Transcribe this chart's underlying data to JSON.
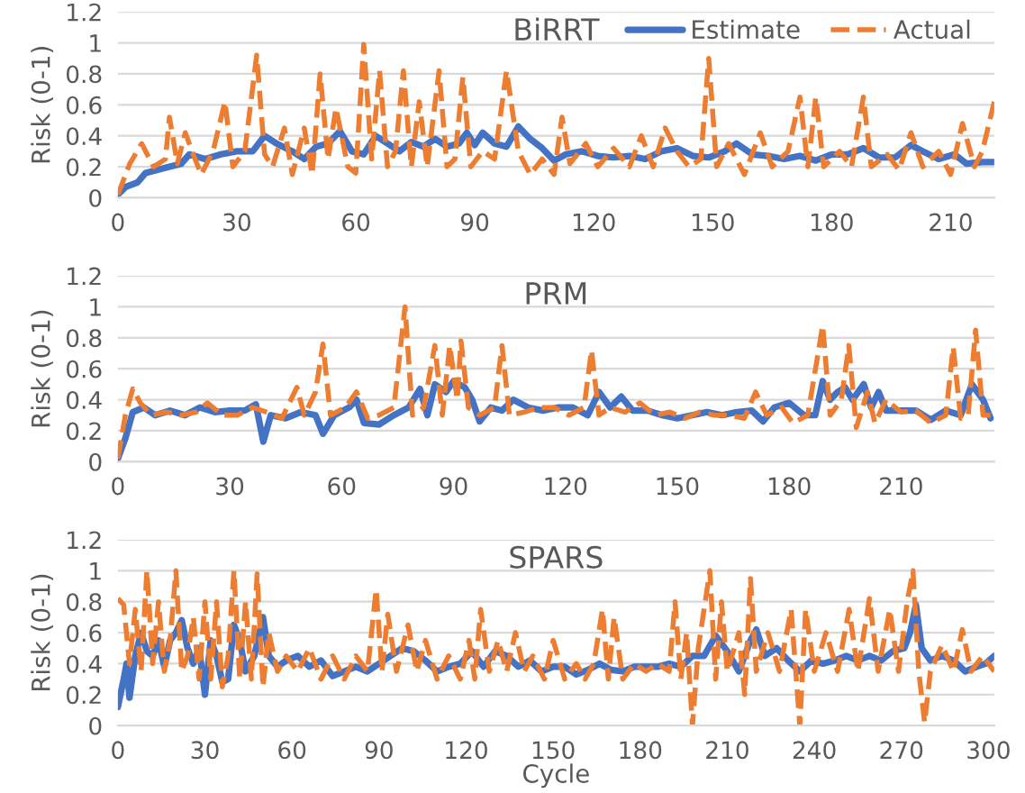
{
  "chart_data": [
    {
      "type": "line",
      "title": "BiRRT",
      "ylabel": "Risk (0-1)",
      "xlim": [
        0,
        221
      ],
      "xticks": [
        0,
        30,
        60,
        90,
        120,
        150,
        180,
        210
      ],
      "ylim": [
        0,
        1.2
      ],
      "yticks": [
        0,
        0.2,
        0.4,
        0.6,
        0.8,
        1,
        1.2
      ],
      "grid": "y",
      "legend": "top right",
      "series": [
        {
          "name": "Estimate",
          "color": "#4472c4",
          "line_style": "solid",
          "x": [
            0,
            2,
            5,
            7,
            10,
            13,
            16,
            18,
            22,
            26,
            30,
            34,
            37,
            40,
            44,
            47,
            50,
            53,
            56,
            59,
            62,
            65,
            68,
            71,
            74,
            77,
            80,
            83,
            86,
            88,
            90,
            92,
            95,
            98,
            101,
            104,
            107,
            110,
            113,
            117,
            121,
            125,
            129,
            133,
            137,
            141,
            145,
            149,
            153,
            156,
            160,
            164,
            168,
            172,
            176,
            180,
            184,
            188,
            192,
            196,
            200,
            203,
            207,
            211,
            214,
            218,
            221
          ],
          "values": [
            0.02,
            0.07,
            0.1,
            0.16,
            0.18,
            0.2,
            0.22,
            0.28,
            0.25,
            0.28,
            0.3,
            0.3,
            0.4,
            0.35,
            0.3,
            0.25,
            0.33,
            0.35,
            0.43,
            0.3,
            0.28,
            0.4,
            0.35,
            0.3,
            0.36,
            0.33,
            0.38,
            0.33,
            0.35,
            0.42,
            0.34,
            0.42,
            0.35,
            0.33,
            0.46,
            0.38,
            0.32,
            0.24,
            0.28,
            0.3,
            0.27,
            0.26,
            0.27,
            0.25,
            0.3,
            0.32,
            0.27,
            0.26,
            0.3,
            0.35,
            0.28,
            0.27,
            0.25,
            0.27,
            0.24,
            0.28,
            0.28,
            0.32,
            0.26,
            0.26,
            0.34,
            0.3,
            0.25,
            0.28,
            0.22,
            0.23,
            0.23
          ]
        },
        {
          "name": "Actual",
          "color": "#ed7d31",
          "line_style": "dashed",
          "x": [
            0,
            3,
            6,
            9,
            12,
            13,
            15,
            17,
            19,
            21,
            24,
            27,
            29,
            32,
            35,
            37,
            39,
            42,
            44,
            47,
            49,
            51,
            53,
            55,
            58,
            60,
            62,
            64,
            66,
            68,
            70,
            72,
            74,
            76,
            78,
            81,
            83,
            85,
            87,
            89,
            92,
            95,
            98,
            101,
            104,
            107,
            110,
            112,
            114,
            118,
            121,
            125,
            129,
            132,
            135,
            138,
            141,
            144,
            147,
            149,
            151,
            154,
            158,
            162,
            165,
            169,
            172,
            174,
            176,
            178,
            182,
            185,
            188,
            190,
            194,
            197,
            200,
            203,
            207,
            210,
            213,
            216,
            218,
            221
          ],
          "values": [
            0.02,
            0.22,
            0.35,
            0.2,
            0.25,
            0.52,
            0.22,
            0.42,
            0.28,
            0.15,
            0.3,
            0.62,
            0.2,
            0.3,
            0.92,
            0.28,
            0.2,
            0.45,
            0.15,
            0.45,
            0.15,
            0.8,
            0.25,
            0.58,
            0.2,
            0.16,
            0.99,
            0.25,
            0.82,
            0.2,
            0.3,
            0.82,
            0.2,
            0.62,
            0.2,
            0.82,
            0.2,
            0.25,
            0.78,
            0.2,
            0.3,
            0.25,
            0.82,
            0.3,
            0.15,
            0.25,
            0.15,
            0.52,
            0.22,
            0.35,
            0.2,
            0.32,
            0.2,
            0.4,
            0.2,
            0.45,
            0.3,
            0.2,
            0.25,
            0.9,
            0.2,
            0.35,
            0.15,
            0.42,
            0.2,
            0.3,
            0.65,
            0.2,
            0.65,
            0.2,
            0.3,
            0.2,
            0.65,
            0.2,
            0.28,
            0.18,
            0.42,
            0.2,
            0.3,
            0.15,
            0.48,
            0.2,
            0.3,
            0.62
          ]
        }
      ]
    },
    {
      "type": "line",
      "title": "PRM",
      "ylabel": "Risk (0-1)",
      "xlim": [
        0,
        235
      ],
      "xticks": [
        0,
        30,
        60,
        90,
        120,
        150,
        180,
        210
      ],
      "ylim": [
        0,
        1.2
      ],
      "yticks": [
        0,
        0.2,
        0.4,
        0.6,
        0.8,
        1,
        1.2
      ],
      "grid": "y",
      "series": [
        {
          "color": "#4472c4",
          "line_style": "solid",
          "x": [
            0,
            2,
            4,
            7,
            10,
            14,
            18,
            22,
            26,
            30,
            34,
            37,
            39,
            41,
            45,
            49,
            53,
            55,
            58,
            62,
            64,
            66,
            70,
            74,
            78,
            81,
            83,
            85,
            88,
            90,
            93,
            95,
            97,
            100,
            103,
            106,
            110,
            114,
            118,
            122,
            126,
            129,
            132,
            135,
            138,
            142,
            146,
            150,
            154,
            158,
            162,
            166,
            170,
            173,
            176,
            180,
            184,
            187,
            189,
            191,
            193,
            195,
            197,
            200,
            202,
            204,
            206,
            210,
            214,
            218,
            222,
            226,
            229,
            232,
            234
          ],
          "values": [
            0.02,
            0.15,
            0.32,
            0.35,
            0.3,
            0.33,
            0.3,
            0.35,
            0.32,
            0.33,
            0.33,
            0.37,
            0.13,
            0.3,
            0.28,
            0.32,
            0.3,
            0.18,
            0.3,
            0.35,
            0.4,
            0.25,
            0.24,
            0.3,
            0.35,
            0.47,
            0.3,
            0.5,
            0.45,
            0.52,
            0.48,
            0.4,
            0.26,
            0.35,
            0.33,
            0.4,
            0.35,
            0.33,
            0.35,
            0.35,
            0.3,
            0.45,
            0.35,
            0.42,
            0.33,
            0.33,
            0.3,
            0.28,
            0.3,
            0.32,
            0.3,
            0.32,
            0.33,
            0.26,
            0.35,
            0.38,
            0.3,
            0.3,
            0.52,
            0.4,
            0.45,
            0.48,
            0.4,
            0.5,
            0.35,
            0.45,
            0.33,
            0.33,
            0.33,
            0.27,
            0.33,
            0.3,
            0.5,
            0.4,
            0.28
          ]
        },
        {
          "color": "#ed7d31",
          "line_style": "dashed",
          "x": [
            0,
            2,
            4,
            6,
            9,
            13,
            17,
            21,
            24,
            28,
            32,
            36,
            40,
            44,
            48,
            50,
            53,
            55,
            57,
            61,
            64,
            67,
            70,
            74,
            77,
            79,
            82,
            85,
            87,
            89,
            91,
            92,
            94,
            97,
            101,
            103,
            105,
            109,
            113,
            117,
            121,
            125,
            127,
            129,
            132,
            136,
            140,
            144,
            148,
            152,
            156,
            160,
            164,
            168,
            171,
            174,
            178,
            181,
            185,
            189,
            191,
            194,
            196,
            198,
            201,
            203,
            206,
            210,
            214,
            218,
            222,
            224,
            226,
            228,
            230,
            232,
            234
          ],
          "values": [
            0.02,
            0.3,
            0.47,
            0.38,
            0.3,
            0.32,
            0.3,
            0.32,
            0.38,
            0.3,
            0.3,
            0.35,
            0.32,
            0.28,
            0.48,
            0.3,
            0.45,
            0.76,
            0.3,
            0.35,
            0.45,
            0.28,
            0.3,
            0.35,
            1.0,
            0.3,
            0.35,
            0.75,
            0.3,
            0.75,
            0.4,
            0.78,
            0.35,
            0.3,
            0.35,
            0.75,
            0.3,
            0.32,
            0.35,
            0.35,
            0.3,
            0.35,
            0.72,
            0.3,
            0.35,
            0.32,
            0.38,
            0.3,
            0.32,
            0.28,
            0.32,
            0.3,
            0.3,
            0.28,
            0.45,
            0.3,
            0.35,
            0.25,
            0.3,
            0.88,
            0.3,
            0.4,
            0.75,
            0.22,
            0.45,
            0.25,
            0.4,
            0.32,
            0.33,
            0.25,
            0.3,
            0.74,
            0.28,
            0.3,
            0.85,
            0.3,
            0.3
          ]
        }
      ]
    },
    {
      "type": "line",
      "title": "SPARS",
      "xlabel": "Cycle",
      "ylabel": "Risk (0-1)",
      "xlim": [
        0,
        302
      ],
      "xticks": [
        0,
        30,
        60,
        90,
        120,
        150,
        180,
        210,
        240,
        270,
        300
      ],
      "ylim": [
        0,
        1.2
      ],
      "yticks": [
        0,
        0.2,
        0.4,
        0.6,
        0.8,
        1,
        1.2
      ],
      "grid": "y",
      "series": [
        {
          "color": "#4472c4",
          "line_style": "solid",
          "x": [
            0,
            2,
            3,
            4,
            6,
            8,
            10,
            12,
            14,
            16,
            18,
            20,
            22,
            24,
            26,
            28,
            30,
            32,
            34,
            36,
            38,
            40,
            42,
            44,
            47,
            50,
            52,
            55,
            58,
            62,
            66,
            70,
            74,
            78,
            82,
            86,
            90,
            94,
            98,
            102,
            106,
            110,
            114,
            118,
            122,
            126,
            130,
            134,
            138,
            142,
            146,
            150,
            154,
            158,
            162,
            166,
            170,
            174,
            178,
            182,
            186,
            190,
            194,
            198,
            202,
            206,
            210,
            214,
            218,
            220,
            223,
            227,
            231,
            235,
            239,
            243,
            247,
            251,
            255,
            259,
            263,
            267,
            271,
            273,
            275,
            277,
            280,
            284,
            288,
            292,
            296,
            299,
            302
          ],
          "values": [
            0.12,
            0.3,
            0.4,
            0.18,
            0.45,
            0.6,
            0.48,
            0.45,
            0.55,
            0.38,
            0.55,
            0.6,
            0.68,
            0.5,
            0.4,
            0.5,
            0.2,
            0.55,
            0.45,
            0.28,
            0.3,
            0.65,
            0.55,
            0.35,
            0.45,
            0.7,
            0.45,
            0.38,
            0.42,
            0.45,
            0.38,
            0.42,
            0.32,
            0.35,
            0.38,
            0.35,
            0.4,
            0.45,
            0.5,
            0.48,
            0.42,
            0.35,
            0.38,
            0.4,
            0.48,
            0.38,
            0.48,
            0.45,
            0.38,
            0.42,
            0.35,
            0.38,
            0.38,
            0.33,
            0.36,
            0.4,
            0.36,
            0.35,
            0.38,
            0.38,
            0.38,
            0.4,
            0.38,
            0.45,
            0.45,
            0.58,
            0.48,
            0.35,
            0.55,
            0.62,
            0.45,
            0.5,
            0.42,
            0.35,
            0.42,
            0.4,
            0.42,
            0.45,
            0.42,
            0.45,
            0.42,
            0.48,
            0.5,
            0.6,
            0.78,
            0.5,
            0.42,
            0.45,
            0.42,
            0.35,
            0.38,
            0.4,
            0.45
          ]
        },
        {
          "color": "#ed7d31",
          "line_style": "dashed",
          "x": [
            0,
            2,
            4,
            6,
            8,
            10,
            12,
            14,
            16,
            18,
            20,
            22,
            24,
            26,
            28,
            30,
            32,
            34,
            36,
            38,
            40,
            42,
            44,
            46,
            48,
            50,
            52,
            55,
            58,
            62,
            66,
            70,
            74,
            78,
            82,
            86,
            89,
            91,
            93,
            96,
            100,
            103,
            106,
            110,
            114,
            118,
            121,
            123,
            125,
            128,
            131,
            134,
            137,
            140,
            143,
            147,
            150,
            154,
            158,
            161,
            164,
            167,
            169,
            171,
            174,
            178,
            182,
            186,
            190,
            192,
            194,
            196,
            198,
            200,
            204,
            206,
            208,
            210,
            214,
            216,
            218,
            220,
            224,
            228,
            232,
            235,
            237,
            240,
            244,
            248,
            252,
            255,
            259,
            262,
            266,
            269,
            272,
            274,
            276,
            278,
            280,
            284,
            288,
            291,
            294,
            298,
            302
          ],
          "values": [
            0.82,
            0.78,
            0.4,
            0.75,
            0.35,
            1.0,
            0.4,
            0.8,
            0.35,
            0.55,
            1.0,
            0.35,
            0.45,
            0.7,
            0.3,
            0.8,
            0.3,
            0.8,
            0.25,
            0.45,
            1.0,
            0.3,
            0.8,
            0.3,
            0.98,
            0.25,
            0.6,
            0.35,
            0.45,
            0.35,
            0.5,
            0.3,
            0.45,
            0.3,
            0.45,
            0.35,
            0.88,
            0.35,
            0.72,
            0.35,
            0.65,
            0.35,
            0.55,
            0.3,
            0.45,
            0.3,
            0.55,
            0.3,
            0.75,
            0.35,
            0.55,
            0.35,
            0.6,
            0.35,
            0.45,
            0.3,
            0.55,
            0.3,
            0.4,
            0.3,
            0.4,
            0.75,
            0.3,
            0.7,
            0.3,
            0.4,
            0.35,
            0.4,
            0.35,
            0.8,
            0.3,
            0.6,
            0.0,
            0.5,
            1.0,
            0.3,
            0.8,
            0.35,
            0.6,
            0.2,
            0.95,
            0.35,
            0.6,
            0.35,
            0.75,
            0.0,
            0.75,
            0.35,
            0.6,
            0.35,
            0.75,
            0.35,
            0.82,
            0.35,
            0.75,
            0.35,
            0.8,
            1.0,
            0.35,
            0.02,
            0.35,
            0.52,
            0.35,
            0.62,
            0.35,
            0.45,
            0.35
          ]
        }
      ]
    }
  ]
}
